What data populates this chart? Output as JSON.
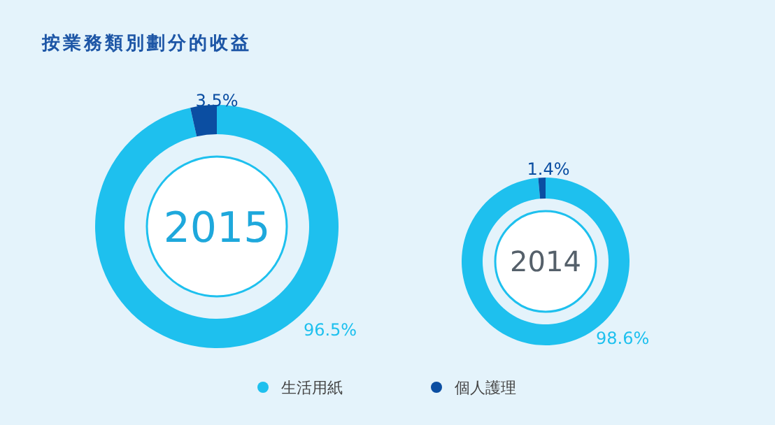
{
  "chart_data": [
    {
      "type": "donut",
      "title": "按業務類別劃分的收益",
      "annotations": [
        "2015"
      ],
      "categories": [
        "生活用紙",
        "個人護理"
      ],
      "values": [
        96.5,
        3.5
      ],
      "colors": [
        "#1ec0ee",
        "#0b4ea2"
      ],
      "value_labels": [
        "96.5%",
        "3.5%"
      ],
      "legend": "bottom"
    },
    {
      "type": "donut",
      "annotations": [
        "2014"
      ],
      "categories": [
        null,
        null
      ],
      "values": [
        98.6,
        1.4
      ],
      "colors": [
        "#1ec0ee",
        "#0b4ea2"
      ],
      "value_labels": [
        "98.6%",
        "1.4%"
      ]
    }
  ]
}
